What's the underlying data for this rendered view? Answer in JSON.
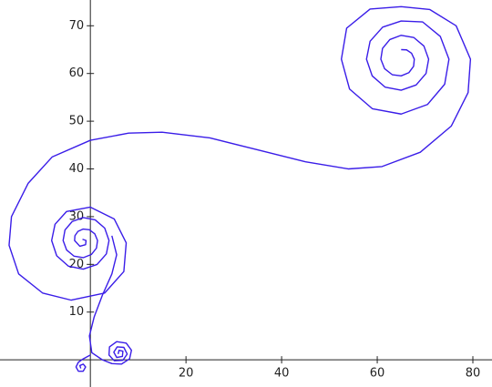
{
  "chart_data": {
    "type": "line",
    "color": "#3a1de8",
    "xlim": [
      -18.9,
      84
    ],
    "ylim": [
      -5.7,
      75.4
    ],
    "xticks": [
      20,
      40,
      60,
      80
    ],
    "yticks": [
      10,
      20,
      30,
      40,
      50,
      60,
      70
    ],
    "grid": false,
    "x": [
      65,
      66.13,
      67.17,
      67.75,
      67.6,
      66.63,
      65,
      63.13,
      61.54,
      60.75,
      61.1,
      62.63,
      65,
      67.63,
      69.76,
      70.75,
      70.2,
      68.13,
      65,
      61.63,
      58.94,
      57.75,
      58.5,
      61.13,
      65,
      69.5,
      73.2,
      75,
      74.1,
      70.5,
      65,
      59,
      54.2,
      52.5,
      53.6,
      58.5,
      65,
      71,
      76.5,
      79.5,
      79,
      75.5,
      69,
      61,
      54,
      45,
      35,
      25,
      15,
      8,
      0,
      -8,
      -13,
      -16.5,
      -17,
      -15,
      -10,
      -4,
      3,
      7,
      7.5,
      5,
      0,
      -5,
      -7.39,
      -8.1,
      -7.04,
      -4.6,
      -1.5,
      1.4,
      3.35,
      3.9,
      3,
      1,
      -1.5,
      -3.8,
      -5.31,
      -5.7,
      -4.96,
      -3.4,
      -1.5,
      0.2,
      1.27,
      1.5,
      0.92,
      -0.2,
      -1.5,
      -2.6,
      -3.23,
      -3.3,
      -2.2,
      -1,
      -0.9,
      -1.65,
      null,
      4.5,
      5.5,
      4.5,
      2.5,
      0.8,
      -0.2,
      0.3,
      2.5,
      4.5,
      6.5,
      8.2,
      8.6,
      7.5,
      5.5,
      4,
      3.9,
      5,
      6.8,
      7.7,
      7,
      5.6,
      4.9,
      5.5,
      6.7,
      6.8,
      6,
      5.8,
      null,
      0,
      -1.5,
      -2.5,
      -3,
      -2.5,
      -1.5,
      -1,
      -1.5,
      -2.2,
      -2
    ],
    "values": [
      65,
      64.95,
      64.25,
      63,
      61.5,
      60.19,
      59.5,
      59.75,
      61,
      63,
      65.25,
      67.11,
      68,
      67.55,
      65.75,
      63,
      60,
      57.59,
      56.5,
      57.15,
      59.5,
      63,
      66.75,
      69.71,
      71,
      70.8,
      67.75,
      63,
      57.75,
      53.5,
      51.5,
      52.6,
      56.75,
      63,
      69.5,
      73.5,
      74,
      73.4,
      70,
      63,
      56,
      49,
      43.5,
      40.5,
      40,
      41.5,
      44,
      46.5,
      47.7,
      47.5,
      46,
      42.5,
      37,
      30,
      24,
      18,
      14,
      12.5,
      14,
      18.5,
      24.5,
      29.5,
      32,
      31.06,
      28.4,
      25,
      21.8,
      19.63,
      19,
      19.98,
      22.2,
      25,
      27.6,
      29.33,
      29.8,
      28.98,
      27.2,
      25,
      23,
      21.71,
      21.4,
      22.06,
      23.4,
      25,
      26.4,
      27.25,
      27.4,
      26.9,
      26,
      25,
      23.79,
      24.13,
      25,
      25.26,
      null,
      26,
      22,
      18,
      13.5,
      9,
      5,
      1.5,
      0,
      -0.8,
      -0.9,
      0.2,
      2,
      3.5,
      3.8,
      2.7,
      1,
      -0.2,
      -0.1,
      1.2,
      2.6,
      2.7,
      1.6,
      0.5,
      0.7,
      1.8,
      2,
      1.2,
      null,
      1,
      0.2,
      -0.5,
      -1.5,
      -2.4,
      -2.4,
      -1.5,
      -0.9,
      -1.2,
      -1.8
    ]
  }
}
